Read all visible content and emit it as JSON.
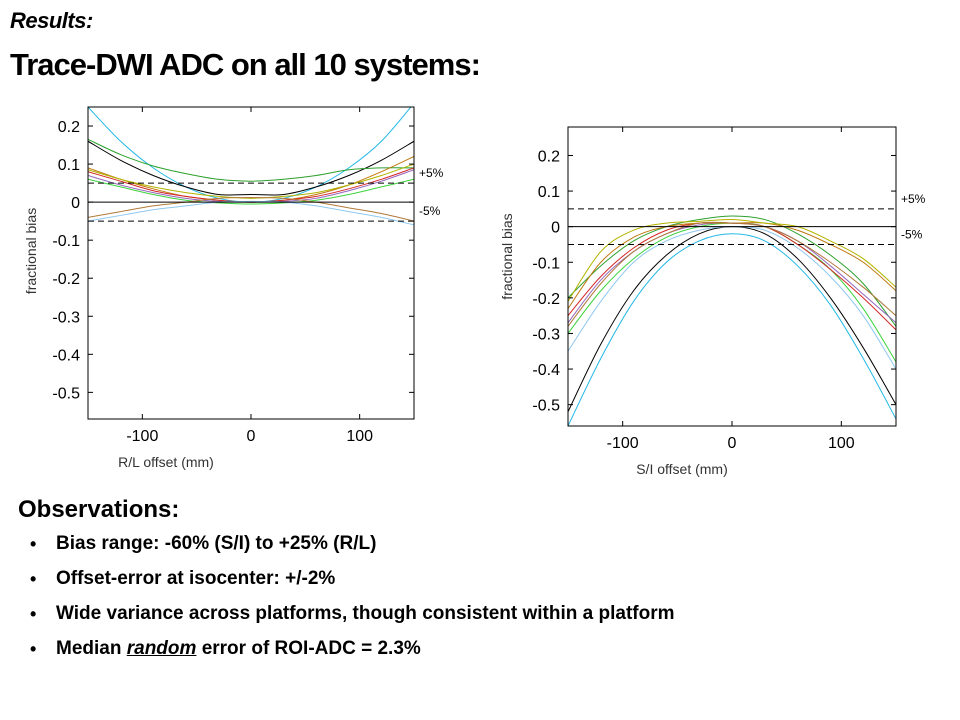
{
  "slide": {
    "subtitle": "Results:",
    "title": "Trace-DWI ADC on all 10 systems:"
  },
  "observations": {
    "heading": "Observations:",
    "bullets": [
      {
        "pre": "Bias range: -60% (S/I) to +25% (R/L)",
        "emph": "",
        "post": ""
      },
      {
        "pre": "Offset-error at isocenter: +/-2%",
        "emph": "",
        "post": ""
      },
      {
        "pre": "Wide variance across platforms, though consistent within a platform",
        "emph": "",
        "post": ""
      },
      {
        "pre": "Median ",
        "emph": "random",
        "post": " error of ROI-ADC = 2.3%"
      }
    ]
  },
  "chart_data": [
    {
      "type": "line",
      "xlabel": "R/L offset (mm)",
      "ylabel": "fractional bias",
      "xlim": [
        -150,
        150
      ],
      "ylim": [
        -0.57,
        0.25
      ],
      "xticks": [
        -100,
        0,
        100
      ],
      "xtick_labels": [
        "-100",
        "0",
        "100"
      ],
      "yticks": [
        0.2,
        0.1,
        0,
        -0.1,
        -0.2,
        -0.3,
        -0.4,
        -0.5
      ],
      "ytick_labels": [
        "0.2",
        "0.1",
        "0",
        "-0.1",
        "-0.2",
        "-0.3",
        "-0.4",
        "-0.5"
      ],
      "grid": false,
      "reference_lines": [
        {
          "y": 0.05,
          "label": "+5%",
          "style": "dashed"
        },
        {
          "y": -0.05,
          "label": "-5%",
          "style": "dashed"
        },
        {
          "y": 0,
          "label": "",
          "style": "solid"
        }
      ],
      "x": [
        -150,
        -120,
        -90,
        -60,
        -30,
        0,
        30,
        60,
        90,
        120,
        150
      ],
      "series": [
        {
          "color": "#22b8e6",
          "values": [
            0.25,
            0.16,
            0.09,
            0.04,
            0.01,
            0.0,
            0.01,
            0.04,
            0.09,
            0.16,
            0.26
          ]
        },
        {
          "color": "#000000",
          "values": [
            0.16,
            0.11,
            0.07,
            0.04,
            0.02,
            0.02,
            0.02,
            0.04,
            0.07,
            0.11,
            0.16
          ]
        },
        {
          "color": "#2ca02c",
          "values": [
            0.165,
            0.125,
            0.095,
            0.075,
            0.06,
            0.055,
            0.06,
            0.07,
            0.085,
            0.09,
            0.09
          ]
        },
        {
          "color": "#c07a10",
          "values": [
            0.09,
            0.06,
            0.035,
            0.015,
            0.005,
            0.0,
            0.005,
            0.02,
            0.045,
            0.08,
            0.12
          ]
        },
        {
          "color": "#b3b300",
          "values": [
            0.085,
            0.06,
            0.04,
            0.025,
            0.015,
            0.01,
            0.015,
            0.025,
            0.045,
            0.07,
            0.1
          ]
        },
        {
          "color": "#d62728",
          "values": [
            0.08,
            0.055,
            0.03,
            0.015,
            0.005,
            0.0,
            0.005,
            0.015,
            0.035,
            0.06,
            0.09
          ]
        },
        {
          "color": "#9467bd",
          "values": [
            0.07,
            0.045,
            0.025,
            0.01,
            0.002,
            0.0,
            0.002,
            0.01,
            0.03,
            0.055,
            0.085
          ]
        },
        {
          "color": "#3cd43c",
          "values": [
            0.06,
            0.04,
            0.02,
            0.005,
            -0.002,
            -0.005,
            -0.002,
            0.005,
            0.02,
            0.04,
            0.06
          ]
        },
        {
          "color": "#b07a3a",
          "values": [
            -0.04,
            -0.025,
            -0.01,
            0.0,
            0.01,
            0.012,
            0.01,
            0.0,
            -0.015,
            -0.03,
            -0.05
          ]
        },
        {
          "color": "#8fc8f0",
          "values": [
            -0.05,
            -0.035,
            -0.02,
            -0.01,
            0.0,
            0.002,
            0.0,
            -0.01,
            -0.025,
            -0.04,
            -0.06
          ]
        }
      ]
    },
    {
      "type": "line",
      "xlabel": "S/I offset (mm)",
      "ylabel": "fractional bias",
      "xlim": [
        -150,
        150
      ],
      "ylim": [
        -0.56,
        0.28
      ],
      "xticks": [
        -100,
        0,
        100
      ],
      "xtick_labels": [
        "-100",
        "0",
        "100"
      ],
      "yticks": [
        0.2,
        0.1,
        0,
        -0.1,
        -0.2,
        -0.3,
        -0.4,
        -0.5
      ],
      "ytick_labels": [
        "0.2",
        "0.1",
        "0",
        "-0.1",
        "-0.2",
        "-0.3",
        "-0.4",
        "-0.5"
      ],
      "grid": false,
      "reference_lines": [
        {
          "y": 0.05,
          "label": "+5%",
          "style": "dashed"
        },
        {
          "y": -0.05,
          "label": "-5%",
          "style": "dashed"
        },
        {
          "y": 0,
          "label": "",
          "style": "solid"
        }
      ],
      "x": [
        -150,
        -120,
        -90,
        -60,
        -30,
        0,
        30,
        60,
        90,
        120,
        150
      ],
      "series": [
        {
          "color": "#22b8e6",
          "values": [
            -0.56,
            -0.37,
            -0.21,
            -0.1,
            -0.04,
            -0.02,
            -0.04,
            -0.11,
            -0.22,
            -0.37,
            -0.54
          ]
        },
        {
          "color": "#000000",
          "values": [
            -0.52,
            -0.33,
            -0.18,
            -0.08,
            -0.02,
            0.0,
            -0.02,
            -0.09,
            -0.2,
            -0.34,
            -0.5
          ]
        },
        {
          "color": "#2ca02c",
          "values": [
            -0.2,
            -0.11,
            -0.04,
            0.0,
            0.02,
            0.03,
            0.02,
            -0.02,
            -0.08,
            -0.16,
            -0.28
          ]
        },
        {
          "color": "#3cd43c",
          "values": [
            -0.3,
            -0.18,
            -0.09,
            -0.03,
            0.0,
            0.01,
            0.0,
            -0.05,
            -0.12,
            -0.23,
            -0.38
          ]
        },
        {
          "color": "#d62728",
          "values": [
            -0.25,
            -0.14,
            -0.06,
            -0.01,
            0.01,
            0.01,
            0.0,
            -0.05,
            -0.12,
            -0.2,
            -0.29
          ]
        },
        {
          "color": "#9467bd",
          "values": [
            -0.27,
            -0.15,
            -0.07,
            -0.02,
            0.005,
            0.01,
            0.0,
            -0.04,
            -0.11,
            -0.19,
            -0.27
          ]
        },
        {
          "color": "#c07a10",
          "values": [
            -0.23,
            -0.1,
            -0.03,
            0.0,
            0.01,
            0.01,
            0.01,
            -0.01,
            -0.05,
            -0.1,
            -0.18
          ]
        },
        {
          "color": "#b3b300",
          "values": [
            -0.21,
            -0.07,
            -0.01,
            0.01,
            0.015,
            0.02,
            0.01,
            0.0,
            -0.04,
            -0.09,
            -0.17
          ]
        },
        {
          "color": "#b07a3a",
          "values": [
            -0.28,
            -0.16,
            -0.07,
            -0.02,
            0.01,
            0.01,
            0.0,
            -0.04,
            -0.1,
            -0.17,
            -0.25
          ]
        },
        {
          "color": "#8fc8f0",
          "values": [
            -0.35,
            -0.21,
            -0.1,
            -0.04,
            -0.01,
            0.0,
            -0.01,
            -0.06,
            -0.14,
            -0.25,
            -0.4
          ]
        }
      ]
    }
  ]
}
